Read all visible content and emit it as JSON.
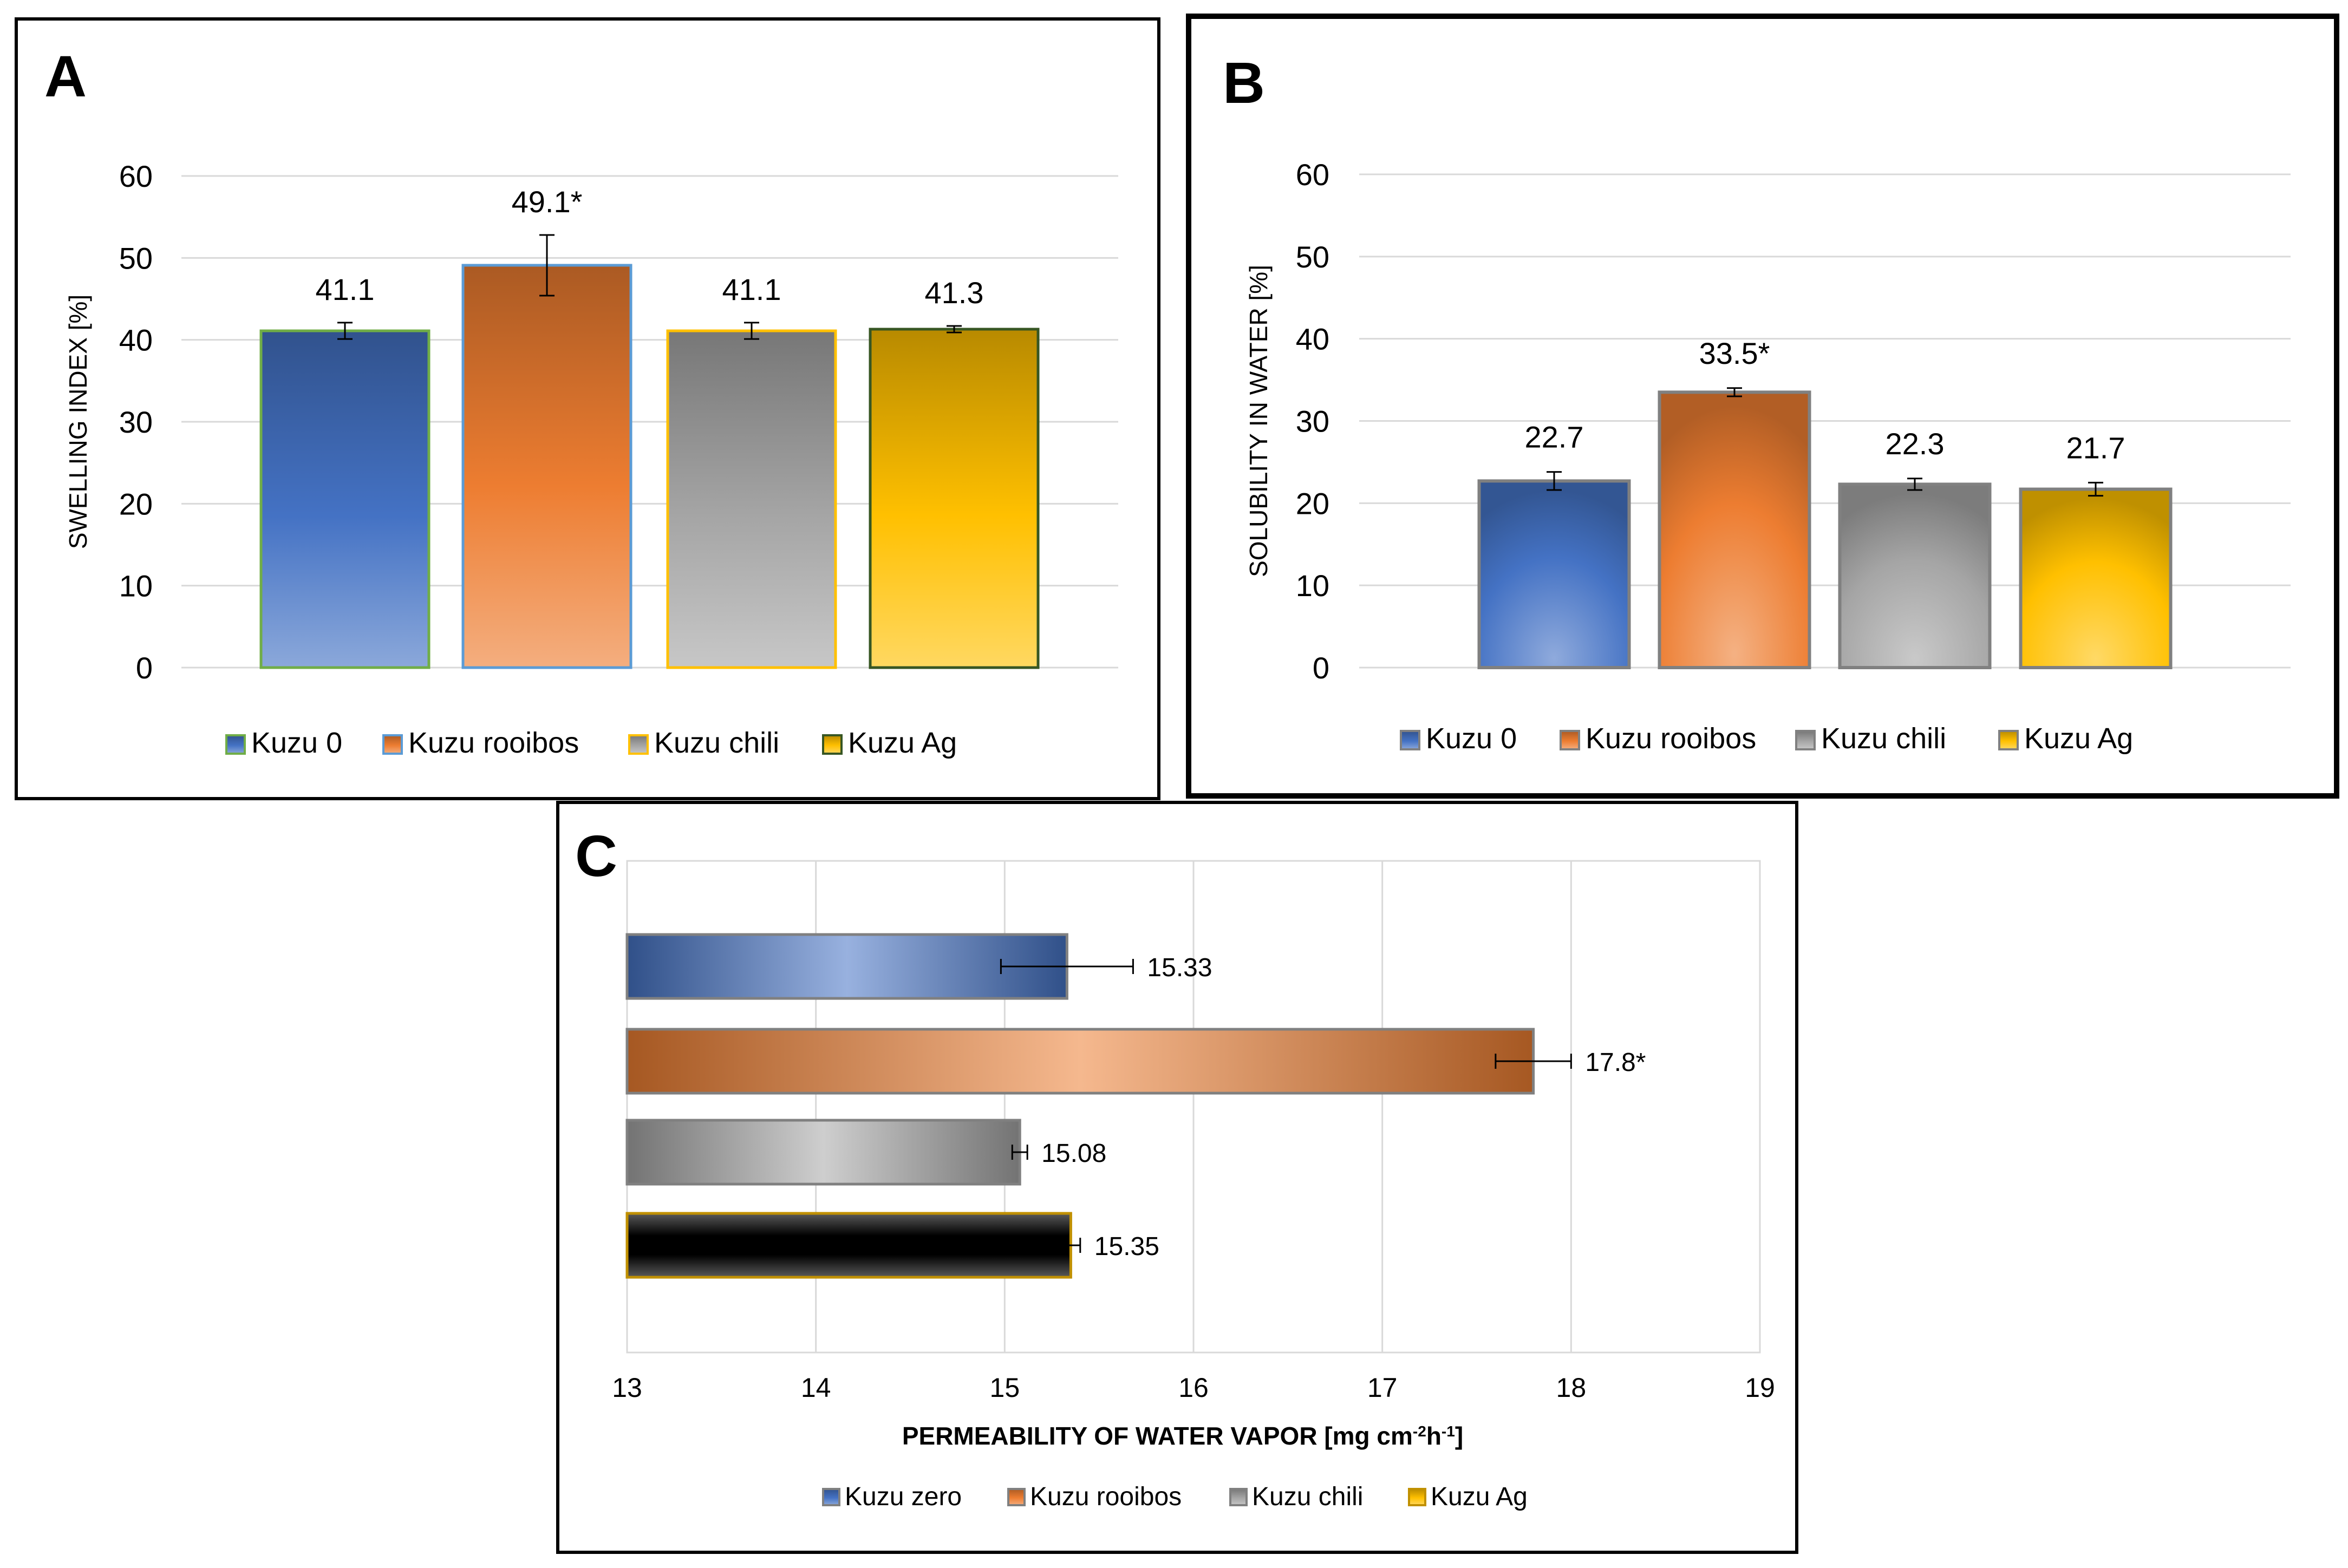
{
  "panels": {
    "A": {
      "letter": "A"
    },
    "B": {
      "letter": "B"
    },
    "C": {
      "letter": "C"
    }
  },
  "chart_data": [
    {
      "id": "A",
      "type": "bar",
      "orientation": "vertical",
      "title": "",
      "xlabel": "",
      "ylabel": "SWELLING INDEX [%]",
      "ylim": [
        0,
        60
      ],
      "yticks": [
        "0",
        "10",
        "20",
        "30",
        "40",
        "50",
        "60"
      ],
      "grid": true,
      "legend_position": "bottom",
      "series": [
        {
          "name": "Kuzu 0",
          "value": 41.1,
          "error": 1.0,
          "label": "41.1",
          "color": "#4472C4",
          "edge": "#70AD47"
        },
        {
          "name": "Kuzu rooibos",
          "value": 49.1,
          "error": 3.7,
          "label": "49.1*",
          "color": "#ED7D31",
          "edge": "#5B9BD5"
        },
        {
          "name": "Kuzu chili",
          "value": 41.1,
          "error": 1.0,
          "label": "41.1",
          "color": "#A5A5A5",
          "edge": "#FFC000"
        },
        {
          "name": "Kuzu Ag",
          "value": 41.3,
          "error": 0.4,
          "label": "41.3",
          "color": "#FFC000",
          "edge": "#375623"
        }
      ]
    },
    {
      "id": "B",
      "type": "bar",
      "orientation": "vertical",
      "title": "",
      "xlabel": "",
      "ylabel": "SOLUBILITY IN WATER [%]",
      "ylim": [
        0,
        60
      ],
      "yticks": [
        "0",
        "10",
        "20",
        "30",
        "40",
        "50",
        "60"
      ],
      "grid": true,
      "legend_position": "bottom",
      "series": [
        {
          "name": "Kuzu 0",
          "value": 22.7,
          "error": 1.1,
          "label": "22.7",
          "color": "#4472C4",
          "edge": "#808080"
        },
        {
          "name": "Kuzu rooibos",
          "value": 33.5,
          "error": 0.5,
          "label": "33.5*",
          "color": "#ED7D31",
          "edge": "#808080"
        },
        {
          "name": "Kuzu chili",
          "value": 22.3,
          "error": 0.7,
          "label": "22.3",
          "color": "#A5A5A5",
          "edge": "#808080"
        },
        {
          "name": "Kuzu Ag",
          "value": 21.7,
          "error": 0.8,
          "label": "21.7",
          "color": "#FFC000",
          "edge": "#808080"
        }
      ]
    },
    {
      "id": "C",
      "type": "bar",
      "orientation": "horizontal",
      "title": "",
      "xlabel": "PERMEABILITY OF WATER VAPOR [mg cm",
      "xlabel_sup1": "-2",
      "xlabel_mid": "h",
      "xlabel_sup2": "-1",
      "xlabel_end": "]",
      "ylabel": "",
      "xlim": [
        13,
        19
      ],
      "xticks": [
        "13",
        "14",
        "15",
        "16",
        "17",
        "18",
        "19"
      ],
      "grid": true,
      "legend_position": "bottom",
      "series": [
        {
          "name": "Kuzu zero",
          "value": 15.33,
          "error": 0.35,
          "label": "15.33",
          "color": "#4472C4",
          "edge": "#808080"
        },
        {
          "name": "Kuzu rooibos",
          "value": 17.8,
          "error": 0.2,
          "label": "17.8*",
          "color": "#ED7D31",
          "edge": "#808080"
        },
        {
          "name": "Kuzu chili",
          "value": 15.08,
          "error": 0.04,
          "label": "15.08",
          "color": "#A5A5A5",
          "edge": "#808080"
        },
        {
          "name": "Kuzu Ag",
          "value": 15.35,
          "error": 0.05,
          "label": "15.35",
          "color": "#FFC000",
          "edge": "#C09000",
          "fill_override": "#000000"
        }
      ]
    }
  ]
}
